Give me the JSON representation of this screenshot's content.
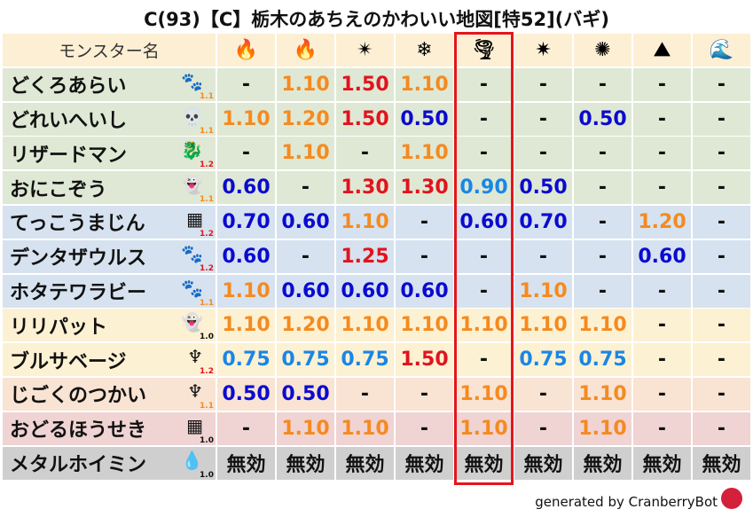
{
  "title": "C(93)【C】栃木のあちえのかわいい地図[特52](バギ)",
  "header": {
    "name_label": "モンスター名",
    "elements": [
      {
        "icon": "fire-icon",
        "glyph": "🔥"
      },
      {
        "icon": "flame-icon",
        "glyph": "🔥"
      },
      {
        "icon": "explosion-icon",
        "glyph": "✴"
      },
      {
        "icon": "ice-icon",
        "glyph": "❄"
      },
      {
        "icon": "wind-icon",
        "glyph": "🌪"
      },
      {
        "icon": "lightning-icon",
        "glyph": "✷"
      },
      {
        "icon": "darkness-icon",
        "glyph": "✺"
      },
      {
        "icon": "earth-icon",
        "glyph": "⛰"
      },
      {
        "icon": "water-icon",
        "glyph": "🌊"
      }
    ]
  },
  "highlight_column": 4,
  "colors": {
    "header_bg": "#fcefd4",
    "highlight": "#e3161c",
    "orange": "#f58a1f",
    "red": "#e0141e",
    "blue": "#0a0ad0",
    "lightblue": "#1a86e6",
    "black": "#111111",
    "rows": {
      "green": "#dfe8d4",
      "blue": "#d6e2ef",
      "yellow": "#fdf1d3",
      "peach": "#f9e3d3",
      "pink": "#f0d3d3",
      "gray": "#cfcfcf"
    }
  },
  "rows": [
    {
      "name": "どくろあらい",
      "icon": "paw-icon",
      "glyph": "🐾",
      "mult": "1.1",
      "bg": "green",
      "values": [
        "-",
        "1.10",
        "1.50",
        "1.10",
        "-",
        "-",
        "-",
        "-",
        "-"
      ]
    },
    {
      "name": "どれいへいし",
      "icon": "skull-icon",
      "glyph": "💀",
      "mult": "1.1",
      "bg": "green",
      "values": [
        "1.10",
        "1.20",
        "1.50",
        "0.50",
        "-",
        "-",
        "0.50",
        "-",
        "-"
      ]
    },
    {
      "name": "リザードマン",
      "icon": "dragon-icon",
      "glyph": "🐉",
      "mult": "1.2",
      "bg": "green",
      "values": [
        "-",
        "1.10",
        "-",
        "1.10",
        "-",
        "-",
        "-",
        "-",
        "-"
      ]
    },
    {
      "name": "おにこぞう",
      "icon": "ghost-icon",
      "glyph": "👻",
      "mult": "1.1",
      "bg": "green",
      "values": [
        "0.60",
        "-",
        "1.30",
        "1.30",
        "0.90",
        "0.50",
        "-",
        "-",
        "-"
      ]
    },
    {
      "name": "てっこうまじん",
      "icon": "brick-icon",
      "glyph": "▦",
      "mult": "1.2",
      "bg": "blue",
      "values": [
        "0.70",
        "0.60",
        "1.10",
        "-",
        "0.60",
        "0.70",
        "-",
        "1.20",
        "-"
      ]
    },
    {
      "name": "デンタザウルス",
      "icon": "paw-icon",
      "glyph": "🐾",
      "mult": "1.2",
      "bg": "blue",
      "values": [
        "0.60",
        "-",
        "1.25",
        "-",
        "-",
        "-",
        "-",
        "0.60",
        "-"
      ]
    },
    {
      "name": "ホタテワラビー",
      "icon": "paw-icon",
      "glyph": "🐾",
      "mult": "1.1",
      "bg": "blue",
      "values": [
        "1.10",
        "0.60",
        "0.60",
        "0.60",
        "-",
        "1.10",
        "-",
        "-",
        "-"
      ]
    },
    {
      "name": "リリパット",
      "icon": "ghost-icon",
      "glyph": "👻",
      "mult": "1.0",
      "bg": "yellow",
      "values": [
        "1.10",
        "1.20",
        "1.10",
        "1.10",
        "1.10",
        "1.10",
        "1.10",
        "-",
        "-"
      ]
    },
    {
      "name": "ブルサベージ",
      "icon": "trident-icon",
      "glyph": "♆",
      "mult": "1.2",
      "bg": "yellow",
      "values": [
        "0.75",
        "0.75",
        "0.75",
        "1.50",
        "-",
        "0.75",
        "0.75",
        "-",
        "-"
      ]
    },
    {
      "name": "じごくのつかい",
      "icon": "trident-icon",
      "glyph": "♆",
      "mult": "1.1",
      "bg": "peach",
      "values": [
        "0.50",
        "0.50",
        "-",
        "-",
        "1.10",
        "-",
        "1.10",
        "-",
        "-"
      ]
    },
    {
      "name": "おどるほうせき",
      "icon": "brick-icon",
      "glyph": "▦",
      "mult": "1.0",
      "bg": "pink",
      "values": [
        "-",
        "1.10",
        "1.10",
        "-",
        "1.10",
        "-",
        "1.10",
        "-",
        "-"
      ]
    },
    {
      "name": "メタルホイミン",
      "icon": "slime-icon",
      "glyph": "💧",
      "mult": "1.0",
      "bg": "gray",
      "values": [
        "無効",
        "無効",
        "無効",
        "無効",
        "無効",
        "無効",
        "無効",
        "無効",
        "無効"
      ]
    }
  ],
  "footer": "generated by CranberryBot"
}
